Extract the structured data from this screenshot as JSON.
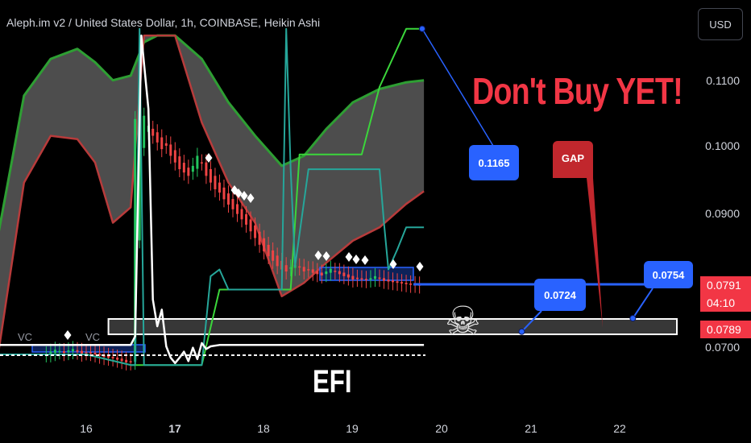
{
  "header": {
    "title": "Aleph.im v2 / United States Dollar, 1h, COINBASE, Heikin Ashi",
    "currency_button": "USD"
  },
  "annotations": {
    "headline": "Don't Buy YET!",
    "efi_label": "EFI",
    "gap_label": "GAP",
    "vc_labels": [
      "VC",
      "VC"
    ],
    "skull_icon": "skull-icon",
    "callout_top": "0.1165",
    "callout_mid": "0.0724",
    "callout_right": "0.0754"
  },
  "price_tags": {
    "last_price": "0.0791",
    "countdown": "04:10",
    "target_price": "0.0789"
  },
  "colors": {
    "background": "#000000",
    "bull_candle": "#22c55e",
    "bear_candle": "#ef4444",
    "band_fill": "#5a5a5a",
    "band_upper": "#2e9e33",
    "band_lower": "#b83b3b",
    "teal_line": "#26a69a",
    "green_line": "#3bd63b",
    "callout_blue": "#2962ff",
    "gap_red": "#c1272d",
    "headline_red": "#f23645"
  },
  "chart_data": {
    "type": "candlestick",
    "title": "Aleph.im v2 / United States Dollar, 1h, COINBASE, Heikin Ashi",
    "x_axis": {
      "tick_labels": [
        "16",
        "17",
        "18",
        "19",
        "20",
        "21",
        "22"
      ]
    },
    "y_axis": {
      "tick_labels": [
        "0.0700",
        "0.0800",
        "0.0900",
        "0.1000",
        "0.1100"
      ],
      "range": [
        0.062,
        0.119
      ]
    },
    "series": [
      {
        "kind": "heikin_ashi_candles",
        "x": [
          15.55,
          15.6,
          15.65,
          15.7,
          15.75,
          15.8,
          15.85,
          15.9,
          15.95,
          16.0,
          16.05,
          16.1,
          16.15,
          16.2,
          16.25,
          16.3,
          16.35,
          16.4,
          16.45,
          16.5,
          16.55,
          16.6,
          16.65,
          16.7,
          16.75,
          16.8,
          16.85,
          16.9,
          16.95,
          17.0,
          17.05,
          17.1,
          17.15,
          17.2,
          17.25,
          17.3,
          17.35,
          17.4,
          17.45,
          17.5,
          17.55,
          17.6,
          17.65,
          17.7,
          17.75,
          17.8,
          17.85,
          17.9,
          17.95,
          18.0,
          18.05,
          18.1,
          18.15,
          18.2,
          18.25,
          18.3,
          18.35,
          18.4,
          18.45,
          18.5,
          18.55,
          18.6,
          18.65,
          18.7,
          18.75,
          18.8,
          18.85,
          18.9,
          18.95,
          19.0,
          19.05,
          19.1,
          19.15,
          19.2,
          19.25,
          19.3,
          19.35,
          19.4,
          19.45,
          19.5,
          19.55,
          19.6,
          19.65,
          19.7,
          19.75
        ],
        "close": [
          0.0688,
          0.0692,
          0.0695,
          0.0693,
          0.069,
          0.0694,
          0.0696,
          0.0692,
          0.0689,
          0.0691,
          0.069,
          0.0688,
          0.0686,
          0.0684,
          0.0683,
          0.0682,
          0.068,
          0.0678,
          0.0676,
          0.0676,
          0.104,
          0.1135,
          0.1045,
          0.103,
          0.1015,
          0.1005,
          0.0995,
          0.1,
          0.0985,
          0.0975,
          0.0965,
          0.096,
          0.0955,
          0.097,
          0.0985,
          0.0975,
          0.0955,
          0.0945,
          0.0935,
          0.093,
          0.092,
          0.0912,
          0.0905,
          0.0898,
          0.089,
          0.0882,
          0.0872,
          0.0862,
          0.0852,
          0.0842,
          0.0835,
          0.0828,
          0.082,
          0.0815,
          0.0812,
          0.0818,
          0.0822,
          0.0818,
          0.0812,
          0.0815,
          0.081,
          0.0808,
          0.0806,
          0.0812,
          0.0816,
          0.0812,
          0.0808,
          0.0805,
          0.0803,
          0.08,
          0.0801,
          0.08,
          0.0799,
          0.0802,
          0.0805,
          0.0801,
          0.0798,
          0.0797,
          0.0796,
          0.0795,
          0.0794,
          0.0793,
          0.0792,
          0.0792,
          0.0791
        ],
        "highlighted_close": 0.0791
      },
      {
        "kind": "band_upper",
        "x": [
          15.0,
          15.3,
          15.6,
          15.9,
          16.1,
          16.3,
          16.5,
          16.65,
          16.8,
          17.0,
          17.3,
          17.6,
          17.9,
          18.2,
          18.45,
          18.7,
          19.0,
          19.3,
          19.6,
          19.8
        ],
        "y": [
          0.086,
          0.1075,
          0.113,
          0.1145,
          0.1125,
          0.1098,
          0.1105,
          0.1155,
          0.1165,
          0.1165,
          0.113,
          0.1065,
          0.1015,
          0.097,
          0.0985,
          0.1025,
          0.1065,
          0.1085,
          0.1095,
          0.1098
        ]
      },
      {
        "kind": "band_lower",
        "x": [
          15.0,
          15.3,
          15.6,
          15.9,
          16.1,
          16.3,
          16.5,
          16.65,
          16.8,
          17.0,
          17.3,
          17.6,
          17.9,
          18.2,
          18.45,
          18.7,
          19.0,
          19.3,
          19.6,
          19.8
        ],
        "y": [
          0.068,
          0.0945,
          0.1015,
          0.101,
          0.0975,
          0.0885,
          0.0908,
          0.1165,
          0.1165,
          0.1165,
          0.1035,
          0.0945,
          0.0885,
          0.0775,
          0.0795,
          0.0825,
          0.0858,
          0.0878,
          0.0913,
          0.0932
        ]
      },
      {
        "kind": "green_step_line",
        "x": [
          15.0,
          16.0,
          16.5,
          16.55,
          17.3,
          17.5,
          18.3,
          18.4,
          18.65,
          19.1,
          19.3,
          19.6,
          19.8
        ],
        "y": [
          0.0688,
          0.0688,
          0.0672,
          0.0672,
          0.0672,
          0.0785,
          0.0785,
          0.0987,
          0.0987,
          0.0987,
          0.1088,
          0.1175,
          0.1175
        ]
      },
      {
        "kind": "teal_line",
        "x": [
          15.0,
          16.0,
          16.5,
          16.55,
          16.6,
          16.65,
          17.3,
          17.4,
          17.5,
          17.6,
          18.2,
          18.25,
          18.3,
          18.35,
          18.5,
          18.6,
          19.0,
          19.3,
          19.35,
          19.4,
          19.5,
          19.6,
          19.8
        ],
        "y": [
          0.0688,
          0.0688,
          0.0672,
          0.0672,
          0.1175,
          0.0672,
          0.0672,
          0.0805,
          0.0815,
          0.0785,
          0.0785,
          0.1175,
          0.0965,
          0.082,
          0.0965,
          0.0965,
          0.0965,
          0.0965,
          0.0885,
          0.0815,
          0.0845,
          0.0878,
          0.0878
        ]
      },
      {
        "kind": "efi_oscillator",
        "x": [
          15.0,
          15.5,
          16.0,
          16.5,
          16.55,
          16.62,
          16.7,
          16.75,
          16.8,
          16.85,
          16.9,
          16.95,
          17.0,
          17.05,
          17.1,
          17.15,
          17.2,
          17.25,
          17.3,
          17.35,
          17.4,
          17.5,
          18.0,
          19.0,
          19.8
        ],
        "y": [
          0.0702,
          0.0702,
          0.0702,
          0.0702,
          0.0715,
          0.1165,
          0.1055,
          0.077,
          0.073,
          0.0755,
          0.07,
          0.0683,
          0.0675,
          0.0683,
          0.0692,
          0.0678,
          0.0698,
          0.0681,
          0.0705,
          0.0696,
          0.07,
          0.0702,
          0.0702,
          0.0702,
          0.0702
        ]
      }
    ],
    "zones": [
      {
        "label": "",
        "x": [
          16.25,
          22.75
        ],
        "y": [
          0.0718,
          0.0741
        ]
      }
    ],
    "markers": [
      {
        "label": "0.1165",
        "x": 19.78,
        "y": 0.1175
      },
      {
        "label": "0.0724",
        "x": 20.9,
        "y": 0.0722
      },
      {
        "label": "0.0754",
        "x": 22.15,
        "y": 0.0742
      }
    ],
    "grid": false,
    "legend": "none"
  }
}
